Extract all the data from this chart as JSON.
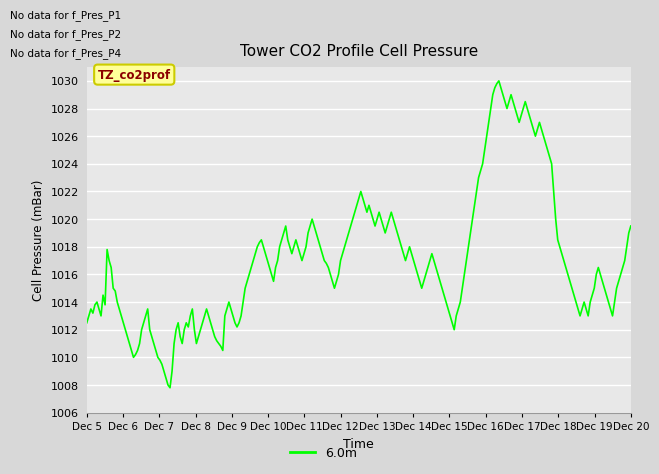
{
  "title": "Tower CO2 Profile Cell Pressure",
  "ylabel": "Cell Pressure (mBar)",
  "xlabel": "Time",
  "ylim": [
    1006,
    1031
  ],
  "yticks": [
    1006,
    1008,
    1010,
    1012,
    1014,
    1016,
    1018,
    1020,
    1022,
    1024,
    1026,
    1028,
    1030
  ],
  "line_color": "#00FF00",
  "line_width": 1.2,
  "bg_color": "#D8D8D8",
  "plot_bg_color": "#E8E8E8",
  "legend_label": "6.0m",
  "text_annotations": [
    "No data for f_Pres_P1",
    "No data for f_Pres_P2",
    "No data for f_Pres_P4"
  ],
  "tooltip_label": "TZ_co2prof",
  "tooltip_bg": "#FFFF99",
  "tooltip_border": "#CCCC00",
  "x_tick_labels": [
    "Dec 5",
    "Dec 6",
    "Dec 7",
    "Dec 8",
    "Dec 9",
    "Dec 10",
    "Dec 11",
    "Dec 12",
    "Dec 13",
    "Dec 14",
    "Dec 15",
    "Dec 16",
    "Dec 17",
    "Dec 18",
    "Dec 19",
    "Dec 20"
  ],
  "y_data": [
    1012.5,
    1013.0,
    1013.5,
    1013.2,
    1013.8,
    1014.0,
    1013.5,
    1013.0,
    1014.5,
    1013.8,
    1017.8,
    1017.0,
    1016.5,
    1015.0,
    1014.8,
    1014.0,
    1013.5,
    1013.0,
    1012.5,
    1012.0,
    1011.5,
    1011.0,
    1010.5,
    1010.0,
    1010.2,
    1010.5,
    1011.0,
    1012.0,
    1012.5,
    1013.0,
    1013.5,
    1012.0,
    1011.5,
    1011.0,
    1010.5,
    1010.0,
    1009.8,
    1009.5,
    1009.0,
    1008.5,
    1008.0,
    1007.8,
    1009.0,
    1011.0,
    1012.0,
    1012.5,
    1011.5,
    1011.0,
    1012.0,
    1012.5,
    1012.2,
    1013.0,
    1013.5,
    1012.0,
    1011.0,
    1011.5,
    1012.0,
    1012.5,
    1013.0,
    1013.5,
    1013.0,
    1012.5,
    1012.0,
    1011.5,
    1011.2,
    1011.0,
    1010.8,
    1010.5,
    1013.0,
    1013.5,
    1014.0,
    1013.5,
    1013.0,
    1012.5,
    1012.2,
    1012.5,
    1013.0,
    1014.0,
    1015.0,
    1015.5,
    1016.0,
    1016.5,
    1017.0,
    1017.5,
    1018.0,
    1018.3,
    1018.5,
    1018.0,
    1017.5,
    1017.0,
    1016.5,
    1016.0,
    1015.5,
    1016.5,
    1017.0,
    1018.0,
    1018.5,
    1019.0,
    1019.5,
    1018.5,
    1018.0,
    1017.5,
    1018.0,
    1018.5,
    1018.0,
    1017.5,
    1017.0,
    1017.5,
    1018.0,
    1019.0,
    1019.5,
    1020.0,
    1019.5,
    1019.0,
    1018.5,
    1018.0,
    1017.5,
    1017.0,
    1016.8,
    1016.5,
    1016.0,
    1015.5,
    1015.0,
    1015.5,
    1016.0,
    1017.0,
    1017.5,
    1018.0,
    1018.5,
    1019.0,
    1019.5,
    1020.0,
    1020.5,
    1021.0,
    1021.5,
    1022.0,
    1021.5,
    1021.0,
    1020.5,
    1021.0,
    1020.5,
    1020.0,
    1019.5,
    1020.0,
    1020.5,
    1020.0,
    1019.5,
    1019.0,
    1019.5,
    1020.0,
    1020.5,
    1020.0,
    1019.5,
    1019.0,
    1018.5,
    1018.0,
    1017.5,
    1017.0,
    1017.5,
    1018.0,
    1017.5,
    1017.0,
    1016.5,
    1016.0,
    1015.5,
    1015.0,
    1015.5,
    1016.0,
    1016.5,
    1017.0,
    1017.5,
    1017.0,
    1016.5,
    1016.0,
    1015.5,
    1015.0,
    1014.5,
    1014.0,
    1013.5,
    1013.0,
    1012.5,
    1012.0,
    1013.0,
    1013.5,
    1014.0,
    1015.0,
    1016.0,
    1017.0,
    1018.0,
    1019.0,
    1020.0,
    1021.0,
    1022.0,
    1023.0,
    1023.5,
    1024.0,
    1025.0,
    1026.0,
    1027.0,
    1028.0,
    1029.0,
    1029.5,
    1029.8,
    1030.0,
    1029.5,
    1029.0,
    1028.5,
    1028.0,
    1028.5,
    1029.0,
    1028.5,
    1028.0,
    1027.5,
    1027.0,
    1027.5,
    1028.0,
    1028.5,
    1028.0,
    1027.5,
    1027.0,
    1026.5,
    1026.0,
    1026.5,
    1027.0,
    1026.5,
    1026.0,
    1025.5,
    1025.0,
    1024.5,
    1024.0,
    1022.0,
    1020.0,
    1018.5,
    1018.0,
    1017.5,
    1017.0,
    1016.5,
    1016.0,
    1015.5,
    1015.0,
    1014.5,
    1014.0,
    1013.5,
    1013.0,
    1013.5,
    1014.0,
    1013.5,
    1013.0,
    1014.0,
    1014.5,
    1015.0,
    1016.0,
    1016.5,
    1016.0,
    1015.5,
    1015.0,
    1014.5,
    1014.0,
    1013.5,
    1013.0,
    1014.0,
    1015.0,
    1015.5,
    1016.0,
    1016.5,
    1017.0,
    1018.0,
    1019.0,
    1019.5
  ]
}
